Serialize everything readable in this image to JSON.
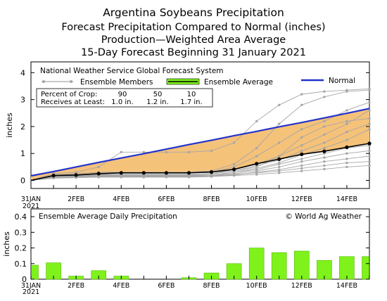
{
  "titles": [
    "Argentina Soybeans Precipitation",
    "Forecast Precipitation Compared to Normal (inches)",
    "Production—Weighted Area Average",
    "15-Day Forecast Beginning 31 January 2021"
  ],
  "colors": {
    "normal_line": "#2233cc",
    "ensemble_average": "#000000",
    "ensemble_members": "#a6a6a6",
    "fill_below_normal": "#f5c27a",
    "bar_fill": "#7ff21c",
    "bar_stroke": "#55bb00"
  },
  "chart_data": [
    {
      "type": "line",
      "subtitle": "National Weather Service Global Forecast System",
      "ylabel": "inches",
      "ylim": [
        -0.3,
        4.4
      ],
      "yticks": [
        0,
        1,
        2,
        3,
        4
      ],
      "grid": false,
      "x_tick_labels": [
        "31JAN",
        "2FEB",
        "4FEB",
        "6FEB",
        "8FEB",
        "10FEB",
        "12FEB",
        "14FEB"
      ],
      "x_tick_sub_label": "2021",
      "x_tick_days": [
        0,
        2,
        4,
        6,
        8,
        10,
        12,
        14
      ],
      "legend": {
        "placement": "top-left",
        "members_label": "Ensemble Members",
        "average_label": "Ensemble Average",
        "normal_label": "Normal"
      },
      "percent_table": {
        "row1_label": "Percent of Crop:",
        "row2_label": "Receives at Least:",
        "percents": [
          "90",
          "50",
          "10"
        ],
        "amounts": [
          "1.0 in.",
          "1.2 in.",
          "1.7 in."
        ]
      },
      "days": [
        0,
        1,
        2,
        3,
        4,
        5,
        6,
        7,
        8,
        9,
        10,
        11,
        12,
        13,
        14,
        15
      ],
      "series": [
        {
          "name": "Normal",
          "role": "normal",
          "values": [
            0.17,
            0.33,
            0.5,
            0.67,
            0.83,
            0.99,
            1.16,
            1.33,
            1.49,
            1.66,
            1.82,
            1.99,
            2.15,
            2.32,
            2.49,
            2.67
          ]
        },
        {
          "name": "Ensemble Average",
          "role": "average",
          "values": [
            0.0,
            0.18,
            0.2,
            0.25,
            0.28,
            0.28,
            0.28,
            0.28,
            0.31,
            0.41,
            0.62,
            0.79,
            0.97,
            1.08,
            1.23,
            1.37
          ]
        },
        {
          "role": "member",
          "values": [
            0.0,
            0.15,
            0.18,
            0.22,
            0.22,
            0.22,
            0.22,
            0.22,
            0.25,
            0.4,
            0.6,
            0.9,
            1.3,
            1.7,
            2.1,
            2.6
          ]
        },
        {
          "role": "member",
          "values": [
            0.0,
            0.25,
            0.3,
            0.5,
            1.05,
            1.05,
            1.05,
            1.05,
            1.1,
            1.4,
            2.2,
            2.8,
            3.2,
            3.3,
            3.35,
            3.4
          ]
        },
        {
          "role": "member",
          "values": [
            0.0,
            0.2,
            0.25,
            0.3,
            0.3,
            0.3,
            0.3,
            0.3,
            0.35,
            0.6,
            1.2,
            2.1,
            2.8,
            3.1,
            3.3,
            3.35
          ]
        },
        {
          "role": "member",
          "values": [
            0.0,
            0.2,
            0.22,
            0.25,
            0.28,
            0.28,
            0.28,
            0.28,
            0.3,
            0.5,
            0.9,
            1.4,
            1.9,
            2.2,
            2.6,
            2.9
          ]
        },
        {
          "role": "member",
          "values": [
            0.0,
            0.18,
            0.2,
            0.22,
            0.22,
            0.22,
            0.22,
            0.22,
            0.25,
            0.35,
            0.5,
            0.9,
            1.6,
            2.0,
            2.2,
            2.3
          ]
        },
        {
          "role": "member",
          "values": [
            0.0,
            0.15,
            0.16,
            0.18,
            0.18,
            0.18,
            0.18,
            0.18,
            0.2,
            0.3,
            0.45,
            0.65,
            0.95,
            1.2,
            1.5,
            1.9
          ]
        },
        {
          "role": "member",
          "values": [
            0.0,
            0.12,
            0.14,
            0.16,
            0.16,
            0.16,
            0.16,
            0.16,
            0.2,
            0.3,
            0.4,
            0.6,
            0.8,
            1.0,
            1.2,
            1.3
          ]
        },
        {
          "role": "member",
          "values": [
            0.0,
            0.14,
            0.15,
            0.17,
            0.17,
            0.17,
            0.17,
            0.17,
            0.2,
            0.25,
            0.35,
            0.5,
            0.7,
            0.85,
            1.0,
            1.1
          ]
        },
        {
          "role": "member",
          "values": [
            0.0,
            0.1,
            0.12,
            0.14,
            0.14,
            0.14,
            0.14,
            0.14,
            0.16,
            0.2,
            0.3,
            0.4,
            0.55,
            0.7,
            0.8,
            0.9
          ]
        },
        {
          "role": "member",
          "values": [
            0.0,
            0.12,
            0.13,
            0.15,
            0.15,
            0.15,
            0.15,
            0.15,
            0.17,
            0.22,
            0.28,
            0.35,
            0.45,
            0.55,
            0.65,
            0.7
          ]
        },
        {
          "role": "member",
          "values": [
            0.0,
            0.08,
            0.1,
            0.12,
            0.12,
            0.12,
            0.12,
            0.12,
            0.14,
            0.18,
            0.22,
            0.28,
            0.35,
            0.42,
            0.5,
            0.55
          ]
        },
        {
          "role": "member",
          "values": [
            0.0,
            0.15,
            0.18,
            0.2,
            0.2,
            0.2,
            0.2,
            0.2,
            0.24,
            0.35,
            0.55,
            0.75,
            1.1,
            1.4,
            1.8,
            2.1
          ]
        }
      ]
    },
    {
      "type": "bar",
      "subtitle": "Ensemble Average Daily Precipitation",
      "credit": "© World Ag Weather",
      "ylabel": "inches",
      "ylim": [
        0,
        0.45
      ],
      "yticks": [
        "0",
        "0.1",
        "0.2",
        "0.3",
        "0.4"
      ],
      "ytick_values": [
        0,
        0.1,
        0.2,
        0.3,
        0.4
      ],
      "grid": false,
      "x_tick_labels": [
        "31JAN",
        "2FEB",
        "4FEB",
        "6FEB",
        "8FEB",
        "10FEB",
        "12FEB",
        "14FEB"
      ],
      "x_tick_sub_label": "2021",
      "x_tick_days": [
        0,
        2,
        4,
        6,
        8,
        10,
        12,
        14
      ],
      "days": [
        0,
        1,
        2,
        3,
        4,
        5,
        6,
        7,
        8,
        9,
        10,
        11,
        12,
        13,
        14,
        15
      ],
      "values": [
        0.09,
        0.105,
        0.02,
        0.055,
        0.02,
        0.0,
        0.0,
        0.01,
        0.04,
        0.1,
        0.2,
        0.17,
        0.18,
        0.12,
        0.145,
        0.145
      ]
    }
  ]
}
